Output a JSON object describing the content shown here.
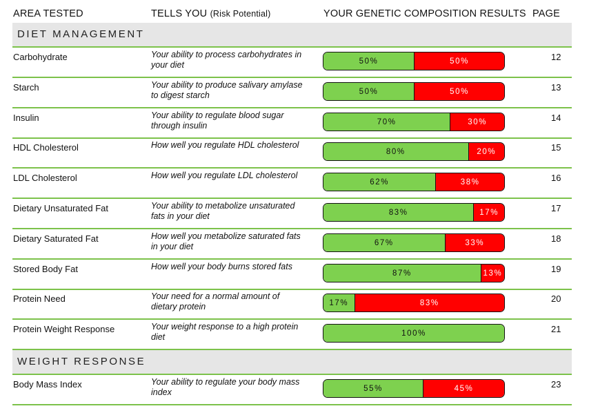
{
  "header": {
    "area_tested": "AREA TESTED",
    "tells_you": "TELLS YOU",
    "tells_you_sub": "(Risk Potential)",
    "results": "YOUR GENETIC COMPOSITION RESULTS",
    "page": "PAGE"
  },
  "colors": {
    "green": "#7ed14f",
    "red": "#ff0000",
    "section_bg": "#e6e6e6",
    "divider": "#7cc24a"
  },
  "sections": [
    {
      "title": "DIET MANAGEMENT",
      "rows": [
        {
          "area": "Carbohydrate",
          "tells": "Your ability to process carbohydrates in your diet",
          "green": 50,
          "red": 50,
          "green_label": "50%",
          "red_label": "50%",
          "page": "12"
        },
        {
          "area": "Starch",
          "tells": "Your ability to produce salivary amylase to digest starch",
          "green": 50,
          "red": 50,
          "green_label": "50%",
          "red_label": "50%",
          "page": "13"
        },
        {
          "area": "Insulin",
          "tells": "Your ability to regulate blood sugar through insulin",
          "green": 70,
          "red": 30,
          "green_label": "70%",
          "red_label": "30%",
          "page": "14"
        },
        {
          "area": "HDL Cholesterol",
          "tells": "How well you regulate HDL cholesterol",
          "green": 80,
          "red": 20,
          "green_label": "80%",
          "red_label": "20%",
          "page": "15"
        },
        {
          "area": "LDL Cholesterol",
          "tells": "How well you regulate LDL cholesterol",
          "green": 62,
          "red": 38,
          "green_label": "62%",
          "red_label": "38%",
          "page": "16"
        },
        {
          "area": "Dietary Unsaturated Fat",
          "tells": "Your ability to metabolize unsaturated fats in your diet",
          "green": 83,
          "red": 17,
          "green_label": "83%",
          "red_label": "17%",
          "page": "17"
        },
        {
          "area": "Dietary Saturated Fat",
          "tells": "How well you metabolize saturated fats in your diet",
          "green": 67,
          "red": 33,
          "green_label": "67%",
          "red_label": "33%",
          "page": "18"
        },
        {
          "area": "Stored Body Fat",
          "tells": "How well your body burns stored fats",
          "green": 87,
          "red": 13,
          "green_label": "87%",
          "red_label": "13%",
          "page": "19"
        },
        {
          "area": "Protein Need",
          "tells": "Your need for a normal amount of dietary protein",
          "green": 17,
          "red": 83,
          "green_label": "17%",
          "red_label": "83%",
          "page": "20"
        },
        {
          "area": "Protein Weight Response",
          "tells": "Your weight response to a high protein diet",
          "green": 100,
          "red": 0,
          "green_label": "100%",
          "red_label": "",
          "page": "21"
        }
      ]
    },
    {
      "title": "WEIGHT RESPONSE",
      "rows": [
        {
          "area": "Body Mass Index",
          "tells": "Your ability to regulate your body mass index",
          "green": 55,
          "red": 45,
          "green_label": "55%",
          "red_label": "45%",
          "page": "23"
        }
      ]
    }
  ]
}
